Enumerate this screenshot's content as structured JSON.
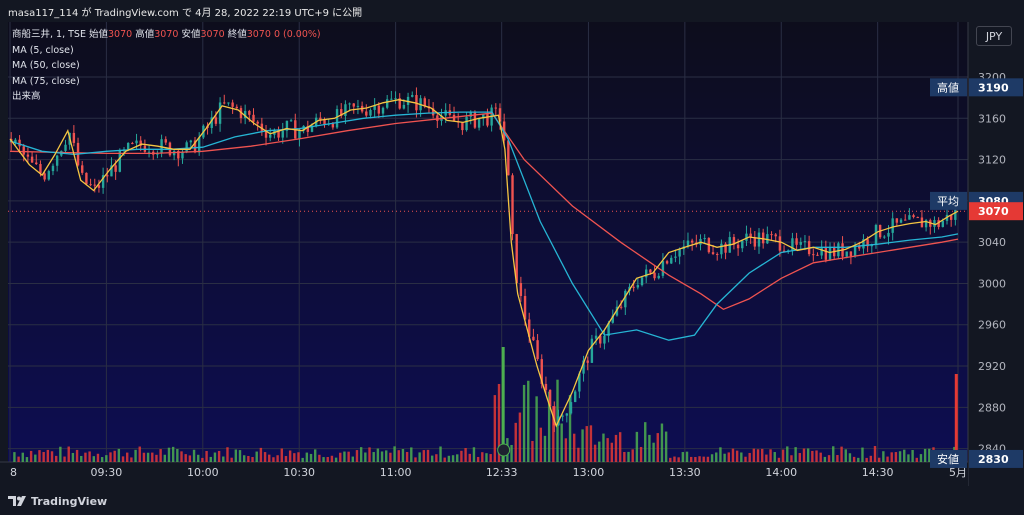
{
  "header": {
    "title": "masa117_114 が TradingView.com で 4月 28, 2022 22:19 UTC+9 に公開"
  },
  "legend": {
    "symbol": "商船三井, 1, TSE",
    "open_label": "始値",
    "open_value": "3070",
    "high_label": "高値",
    "high_value": "3070",
    "low_label": "安値",
    "low_value": "3070",
    "close_label": "終値",
    "close_value": "3070",
    "change": "0 (0.00%)",
    "ma5": "MA (5, close)",
    "ma50": "MA (50, close)",
    "ma75": "MA (75, close)",
    "volume": "出来高"
  },
  "currency": "JPY",
  "footer": {
    "brand": "TradingView"
  },
  "colors": {
    "up": "#26a69a",
    "down": "#ef5350",
    "ma5": "#f5c542",
    "ma50": "#26b5d4",
    "ma75": "#ef5350",
    "vol_up": "#4caf50",
    "vol_down": "#e53935",
    "label_bg": "#1e3a66"
  },
  "chart_data": {
    "type": "candlestick",
    "y_range": [
      2820,
      3220
    ],
    "y_ticks": [
      3200,
      3160,
      3120,
      3080,
      3040,
      3000,
      2960,
      2920,
      2880,
      2840
    ],
    "x_ticks": [
      "8",
      "09:30",
      "10:00",
      "10:30",
      "11:00",
      "12:33",
      "13:00",
      "13:30",
      "14:00",
      "14:30",
      "5月"
    ],
    "x_tick_minutes": [
      0,
      30,
      60,
      90,
      120,
      153,
      180,
      210,
      240,
      270,
      295
    ],
    "price_labels": [
      {
        "text": "高値",
        "value": "3190"
      },
      {
        "text": "平均",
        "value": "3080"
      },
      {
        "text": "",
        "value": "3070",
        "current": true
      },
      {
        "text": "安値",
        "value": "2830"
      }
    ],
    "price_line": 3070,
    "ma5_points": [
      [
        0,
        3140
      ],
      [
        6,
        3115
      ],
      [
        10,
        3105
      ],
      [
        14,
        3125
      ],
      [
        18,
        3148
      ],
      [
        22,
        3100
      ],
      [
        26,
        3090
      ],
      [
        31,
        3110
      ],
      [
        36,
        3128
      ],
      [
        41,
        3135
      ],
      [
        46,
        3133
      ],
      [
        51,
        3130
      ],
      [
        56,
        3130
      ],
      [
        61,
        3150
      ],
      [
        66,
        3172
      ],
      [
        71,
        3168
      ],
      [
        76,
        3155
      ],
      [
        81,
        3145
      ],
      [
        86,
        3150
      ],
      [
        91,
        3148
      ],
      [
        96,
        3158
      ],
      [
        101,
        3160
      ],
      [
        106,
        3168
      ],
      [
        111,
        3170
      ],
      [
        116,
        3175
      ],
      [
        121,
        3178
      ],
      [
        126,
        3175
      ],
      [
        131,
        3170
      ],
      [
        136,
        3158
      ],
      [
        141,
        3156
      ],
      [
        146,
        3160
      ],
      [
        152,
        3163
      ],
      [
        154,
        3130
      ],
      [
        156,
        3040
      ],
      [
        158,
        2990
      ],
      [
        161,
        2955
      ],
      [
        164,
        2920
      ],
      [
        167,
        2890
      ],
      [
        170,
        2862
      ],
      [
        175,
        2895
      ],
      [
        180,
        2935
      ],
      [
        185,
        2955
      ],
      [
        190,
        2980
      ],
      [
        195,
        3005
      ],
      [
        200,
        3010
      ],
      [
        205,
        3030
      ],
      [
        210,
        3035
      ],
      [
        215,
        3040
      ],
      [
        220,
        3035
      ],
      [
        225,
        3038
      ],
      [
        230,
        3045
      ],
      [
        235,
        3043
      ],
      [
        240,
        3040
      ],
      [
        245,
        3032
      ],
      [
        250,
        3035
      ],
      [
        255,
        3030
      ],
      [
        260,
        3033
      ],
      [
        265,
        3040
      ],
      [
        270,
        3050
      ],
      [
        275,
        3055
      ],
      [
        280,
        3058
      ],
      [
        285,
        3060
      ],
      [
        288,
        3057
      ],
      [
        292,
        3065
      ],
      [
        295,
        3070
      ]
    ],
    "ma50_points": [
      [
        0,
        3138
      ],
      [
        10,
        3128
      ],
      [
        20,
        3125
      ],
      [
        30,
        3128
      ],
      [
        40,
        3130
      ],
      [
        50,
        3130
      ],
      [
        60,
        3132
      ],
      [
        70,
        3142
      ],
      [
        80,
        3148
      ],
      [
        90,
        3150
      ],
      [
        100,
        3155
      ],
      [
        110,
        3160
      ],
      [
        120,
        3163
      ],
      [
        130,
        3165
      ],
      [
        140,
        3166
      ],
      [
        150,
        3166
      ],
      [
        155,
        3140
      ],
      [
        165,
        3060
      ],
      [
        175,
        3000
      ],
      [
        185,
        2950
      ],
      [
        195,
        2955
      ],
      [
        205,
        2945
      ],
      [
        213,
        2950
      ],
      [
        220,
        2980
      ],
      [
        230,
        3010
      ],
      [
        240,
        3030
      ],
      [
        250,
        3035
      ],
      [
        260,
        3035
      ],
      [
        270,
        3038
      ],
      [
        280,
        3042
      ],
      [
        290,
        3045
      ],
      [
        295,
        3048
      ]
    ],
    "ma75_points": [
      [
        0,
        3128
      ],
      [
        15,
        3127
      ],
      [
        30,
        3126
      ],
      [
        45,
        3126
      ],
      [
        60,
        3128
      ],
      [
        75,
        3133
      ],
      [
        90,
        3140
      ],
      [
        105,
        3148
      ],
      [
        120,
        3155
      ],
      [
        135,
        3160
      ],
      [
        150,
        3165
      ],
      [
        160,
        3120
      ],
      [
        175,
        3075
      ],
      [
        190,
        3040
      ],
      [
        205,
        3008
      ],
      [
        215,
        2990
      ],
      [
        222,
        2975
      ],
      [
        230,
        2985
      ],
      [
        240,
        3005
      ],
      [
        250,
        3020
      ],
      [
        260,
        3025
      ],
      [
        270,
        3030
      ],
      [
        280,
        3035
      ],
      [
        290,
        3040
      ],
      [
        295,
        3043
      ]
    ],
    "volume_note": "bars at bottom, green = up, red = down"
  }
}
